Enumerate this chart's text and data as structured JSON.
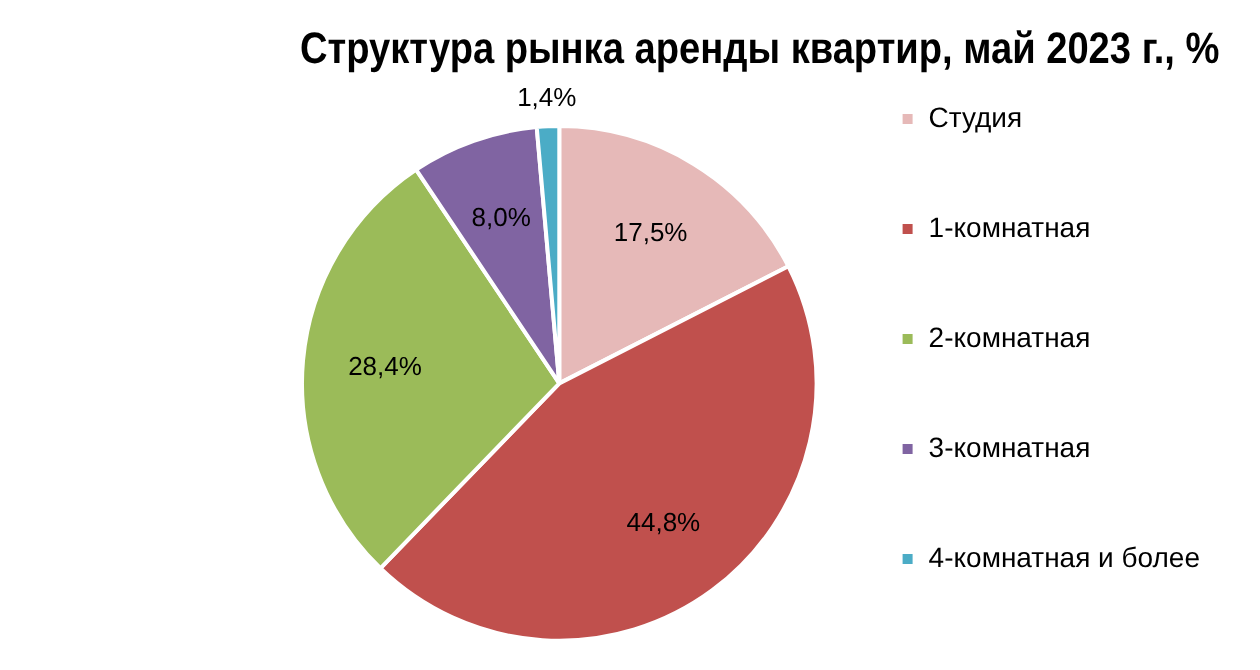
{
  "chart_data": {
    "type": "pie",
    "title": "Структура рынка аренды квартир, май 2023 г., %",
    "categories": [
      "Студия",
      "1-комнатная",
      "2-комнатная",
      "3-комнатная",
      "4-комнатная и более"
    ],
    "values": [
      17.5,
      44.8,
      28.4,
      8.0,
      1.4
    ],
    "colors": [
      "#e6b9b8",
      "#c0504d",
      "#9bbb59",
      "#8064a2",
      "#4bacc6"
    ],
    "value_labels": [
      "17,5%",
      "44,8%",
      "28,4%",
      "8,0%",
      "1,4%"
    ],
    "legend": "right"
  }
}
